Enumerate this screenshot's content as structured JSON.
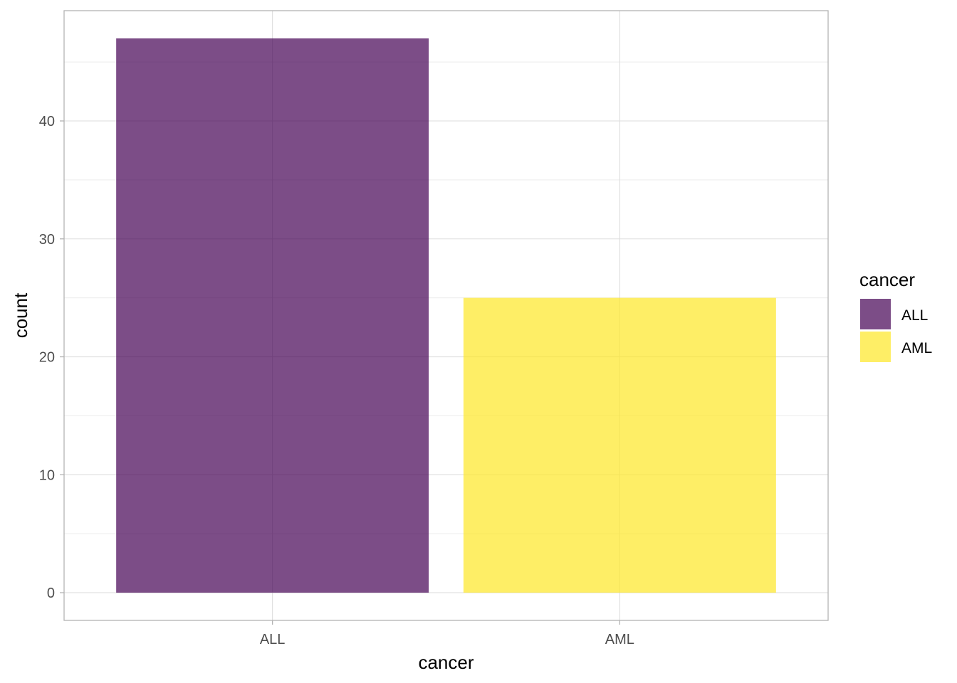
{
  "chart_data": {
    "type": "bar",
    "categories": [
      "ALL",
      "AML"
    ],
    "values": [
      47,
      25
    ],
    "colors": [
      "#440154",
      "#FDE725"
    ],
    "bar_opacity": 0.7,
    "xlabel": "cancer",
    "ylabel": "count",
    "ylim": [
      -2.35,
      49.35
    ],
    "yticks": [
      0,
      10,
      20,
      30,
      40
    ],
    "ytick_labels": [
      "0",
      "10",
      "20",
      "30",
      "40"
    ],
    "grid": true,
    "legend": {
      "title": "cancer",
      "position": "right",
      "entries": [
        {
          "label": "ALL",
          "color": "#440154"
        },
        {
          "label": "AML",
          "color": "#FDE725"
        }
      ]
    }
  }
}
